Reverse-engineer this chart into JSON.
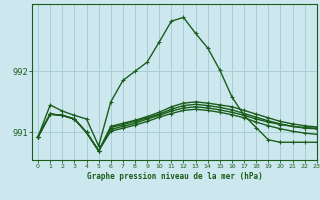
{
  "xlabel": "Graphe pression niveau de la mer (hPa)",
  "bg_color": "#cce8ee",
  "grid_color": "#aacdd6",
  "line_color": "#1a5c1a",
  "ylim": [
    990.55,
    993.1
  ],
  "xlim": [
    -0.5,
    23
  ],
  "yticks": [
    991,
    992
  ],
  "ytick_labels": [
    "991",
    "992"
  ],
  "xticks": [
    0,
    1,
    2,
    3,
    4,
    5,
    6,
    7,
    8,
    9,
    10,
    11,
    12,
    13,
    14,
    15,
    16,
    17,
    18,
    19,
    20,
    21,
    22,
    23
  ],
  "series": [
    [
      990.93,
      991.45,
      991.35,
      991.28,
      991.22,
      990.78,
      991.5,
      991.85,
      992.0,
      992.15,
      992.48,
      992.82,
      992.88,
      992.62,
      992.38,
      992.02,
      991.58,
      991.28,
      991.08,
      990.88,
      990.84,
      990.84,
      990.84,
      990.84
    ],
    [
      990.93,
      991.3,
      991.28,
      991.22,
      991.0,
      990.7,
      991.05,
      991.1,
      991.15,
      991.22,
      991.28,
      991.35,
      991.4,
      991.42,
      991.4,
      991.37,
      991.33,
      991.28,
      991.22,
      991.17,
      991.13,
      991.1,
      991.08,
      991.07
    ],
    [
      990.93,
      991.3,
      991.28,
      991.22,
      991.0,
      990.7,
      991.1,
      991.15,
      991.2,
      991.26,
      991.33,
      991.42,
      991.48,
      991.5,
      991.48,
      991.45,
      991.42,
      991.36,
      991.3,
      991.24,
      991.18,
      991.14,
      991.11,
      991.09
    ],
    [
      990.93,
      991.3,
      991.28,
      991.22,
      991.0,
      990.7,
      991.08,
      991.13,
      991.18,
      991.24,
      991.3,
      991.38,
      991.44,
      991.46,
      991.44,
      991.41,
      991.37,
      991.31,
      991.25,
      991.19,
      991.14,
      991.1,
      991.07,
      991.06
    ],
    [
      990.93,
      991.3,
      991.28,
      991.22,
      991.0,
      990.7,
      991.02,
      991.07,
      991.12,
      991.18,
      991.25,
      991.31,
      991.36,
      991.38,
      991.36,
      991.33,
      991.29,
      991.24,
      991.17,
      991.11,
      991.06,
      991.02,
      990.99,
      990.97
    ]
  ]
}
